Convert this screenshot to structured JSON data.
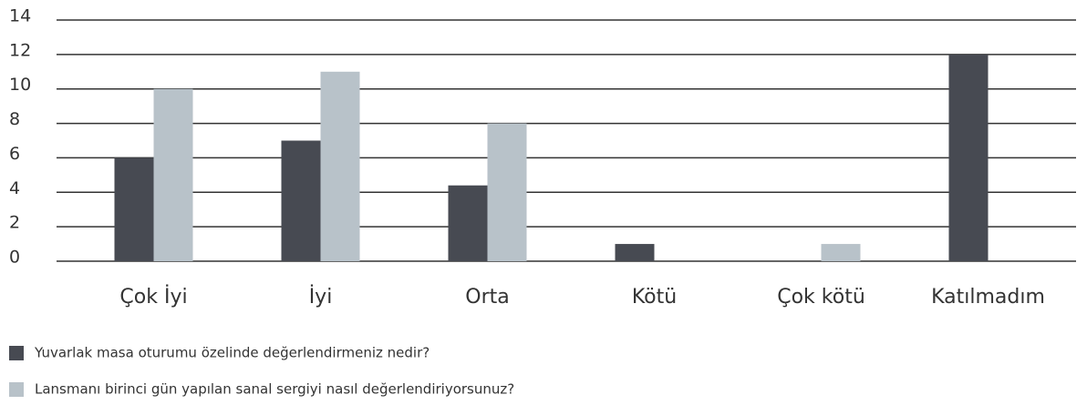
{
  "chart_data": {
    "type": "bar",
    "categories": [
      "Çok İyi",
      "İyi",
      "Orta",
      "Kötü",
      "Çok kötü",
      "Katılmadım"
    ],
    "series": [
      {
        "name": "Yuvarlak masa oturumu özelinde değerlendirmeniz nedir?",
        "color": "#474a52",
        "values": [
          6,
          7,
          4.4,
          1,
          null,
          12
        ]
      },
      {
        "name": "Lansmanı birinci gün yapılan sanal sergiyi nasıl değerlendiriyorsunuz?",
        "color": "#b8c2c9",
        "values": [
          10,
          11,
          8,
          null,
          1,
          null
        ]
      }
    ],
    "ylim": [
      0,
      14
    ],
    "yticks": [
      0,
      2,
      4,
      6,
      8,
      10,
      12,
      14
    ],
    "grid": true,
    "legend": "bottom-left"
  }
}
